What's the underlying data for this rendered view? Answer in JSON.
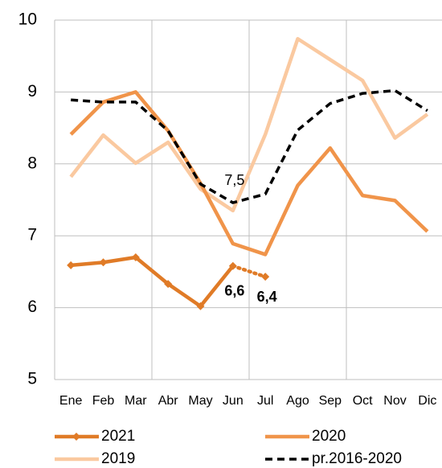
{
  "chart_data": {
    "type": "line",
    "categories": [
      "Ene",
      "Feb",
      "Mar",
      "Abr",
      "May",
      "Jun",
      "Jul",
      "Ago",
      "Sep",
      "Oct",
      "Nov",
      "Dic"
    ],
    "ylim": [
      5,
      10
    ],
    "yticks": [
      5,
      6,
      7,
      8,
      9,
      10
    ],
    "grid": true,
    "legend": "bottom",
    "series": [
      {
        "name": "2021",
        "color": "#e07b27",
        "marker": "diamond",
        "last_segment_style": "dotted",
        "values": [
          6.59,
          6.63,
          6.7,
          6.33,
          6.02,
          6.58,
          6.43,
          null,
          null,
          null,
          null,
          null
        ],
        "value_labels": [
          null,
          null,
          null,
          null,
          null,
          "6,6",
          "6,4",
          null,
          null,
          null,
          null,
          null
        ]
      },
      {
        "name": "2020",
        "color": "#f0944a",
        "values": [
          8.41,
          8.86,
          9.0,
          8.46,
          7.73,
          6.89,
          6.74,
          7.7,
          8.22,
          7.56,
          7.49,
          7.06
        ]
      },
      {
        "name": "2019",
        "color": "#fac9a0",
        "values": [
          7.82,
          8.4,
          8.01,
          8.3,
          7.65,
          7.35,
          8.41,
          9.74,
          9.45,
          9.16,
          8.36,
          8.69
        ]
      },
      {
        "name": "pr.2016-2020",
        "color": "#000000",
        "dash": true,
        "values": [
          8.89,
          8.86,
          8.86,
          8.46,
          7.72,
          7.46,
          7.58,
          8.47,
          8.84,
          8.98,
          9.02,
          8.74
        ],
        "value_labels": [
          null,
          null,
          null,
          null,
          null,
          "7,5",
          null,
          null,
          null,
          null,
          null,
          null
        ]
      }
    ]
  }
}
